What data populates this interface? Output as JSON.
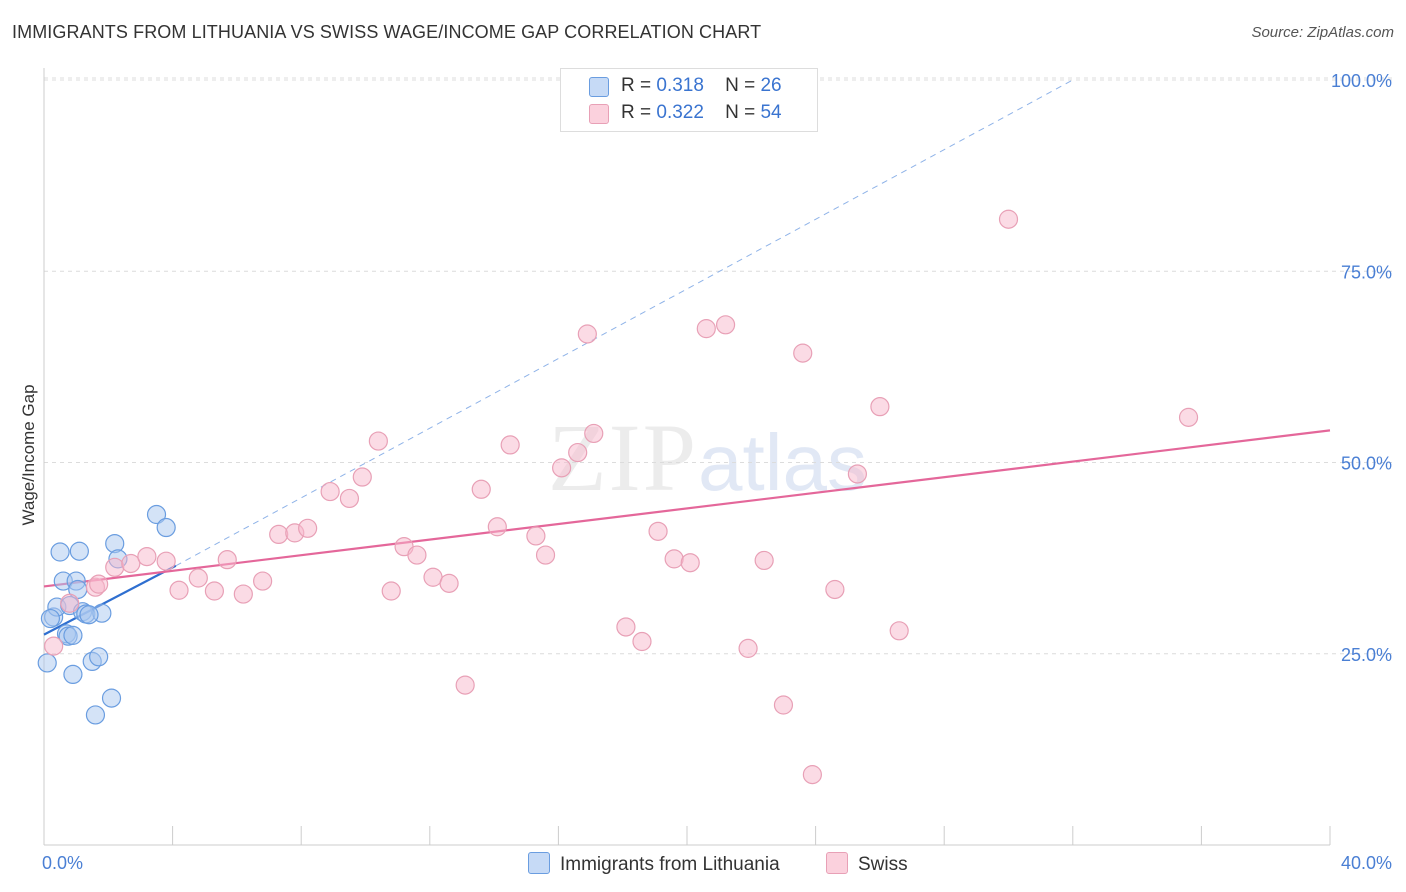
{
  "title": "IMMIGRANTS FROM LITHUANIA VS SWISS WAGE/INCOME GAP CORRELATION CHART",
  "source": "Source: ZipAtlas.com",
  "watermark": {
    "zip": "ZIP",
    "atlas": "atlas"
  },
  "legend": {
    "r_label": "R =",
    "n_label": "N =",
    "rows": [
      {
        "name": "Immigrants from Lithuania",
        "r": "0.318",
        "n": "26",
        "color": "#a9c8f0"
      },
      {
        "name": "Swiss",
        "r": "0.322",
        "n": "54",
        "color": "#f7b8cb"
      }
    ]
  },
  "chart_data": {
    "type": "scatter",
    "title": "IMMIGRANTS FROM LITHUANIA VS SWISS WAGE/INCOME GAP CORRELATION CHART",
    "xlabel": "",
    "ylabel": "Wage/Income Gap",
    "xlim": [
      0,
      40
    ],
    "ylim": [
      0,
      105
    ],
    "x_tick_labels": [
      "0.0%",
      "40.0%"
    ],
    "y_ticks": [
      25,
      50,
      75,
      100
    ],
    "y_tick_labels": [
      "25.0%",
      "50.0%",
      "75.0%",
      "100.0%"
    ],
    "grid": true,
    "legend_position": "top-center",
    "series": [
      {
        "name": "Immigrants from Lithuania",
        "color": "#6a9de0",
        "fill": "#a9c8f0",
        "trend_color": "#2f6fd0",
        "trend_solid": {
          "x": [
            0,
            4.1
          ],
          "y": [
            27.5,
            36.5
          ]
        },
        "trend_dashed": {
          "x": [
            4.1,
            32
          ],
          "y": [
            36.5,
            100
          ]
        },
        "points": [
          [
            0.1,
            23.8
          ],
          [
            0.3,
            29.8
          ],
          [
            0.4,
            31.1
          ],
          [
            0.5,
            38.3
          ],
          [
            0.6,
            34.5
          ],
          [
            0.7,
            27.6
          ],
          [
            0.75,
            27.3
          ],
          [
            0.8,
            31.3
          ],
          [
            0.9,
            22.3
          ],
          [
            1.0,
            34.5
          ],
          [
            1.05,
            33.4
          ],
          [
            1.1,
            38.4
          ],
          [
            1.2,
            30.5
          ],
          [
            1.3,
            30.2
          ],
          [
            1.5,
            24.0
          ],
          [
            1.6,
            17.0
          ],
          [
            1.7,
            24.6
          ],
          [
            1.8,
            30.3
          ],
          [
            2.1,
            19.2
          ],
          [
            2.2,
            39.4
          ],
          [
            2.3,
            37.4
          ],
          [
            3.5,
            43.2
          ],
          [
            3.8,
            41.5
          ],
          [
            0.2,
            29.6
          ],
          [
            0.9,
            27.4
          ],
          [
            1.4,
            30.1
          ]
        ]
      },
      {
        "name": "Swiss",
        "color": "#e8a0b6",
        "fill": "#f7b8cb",
        "trend_color": "#e4679a",
        "trend_solid": {
          "x": [
            0,
            40
          ],
          "y": [
            33.8,
            54.2
          ]
        },
        "points": [
          [
            0.3,
            26.0
          ],
          [
            0.8,
            31.6
          ],
          [
            1.6,
            33.7
          ],
          [
            1.7,
            34.1
          ],
          [
            2.2,
            36.3
          ],
          [
            2.7,
            36.8
          ],
          [
            3.2,
            37.7
          ],
          [
            3.8,
            37.1
          ],
          [
            4.2,
            33.3
          ],
          [
            4.8,
            34.9
          ],
          [
            5.3,
            33.2
          ],
          [
            5.7,
            37.3
          ],
          [
            6.2,
            32.8
          ],
          [
            6.8,
            34.5
          ],
          [
            7.3,
            40.6
          ],
          [
            7.8,
            40.8
          ],
          [
            8.2,
            41.4
          ],
          [
            8.9,
            46.2
          ],
          [
            9.5,
            45.3
          ],
          [
            9.9,
            48.1
          ],
          [
            10.4,
            52.8
          ],
          [
            10.8,
            33.2
          ],
          [
            11.2,
            39.0
          ],
          [
            11.6,
            37.9
          ],
          [
            12.1,
            35.0
          ],
          [
            12.6,
            34.2
          ],
          [
            13.1,
            20.9
          ],
          [
            13.6,
            46.5
          ],
          [
            14.1,
            41.6
          ],
          [
            14.5,
            52.3
          ],
          [
            15.3,
            40.4
          ],
          [
            15.6,
            37.9
          ],
          [
            16.1,
            49.3
          ],
          [
            16.6,
            51.3
          ],
          [
            17.1,
            53.8
          ],
          [
            16.9,
            66.8
          ],
          [
            18.1,
            28.5
          ],
          [
            18.6,
            26.6
          ],
          [
            19.1,
            41.0
          ],
          [
            19.6,
            37.4
          ],
          [
            20.1,
            36.9
          ],
          [
            20.6,
            67.5
          ],
          [
            21.2,
            68.0
          ],
          [
            21.9,
            25.7
          ],
          [
            22.4,
            37.2
          ],
          [
            23.0,
            18.3
          ],
          [
            23.6,
            64.3
          ],
          [
            23.9,
            9.2
          ],
          [
            24.6,
            33.4
          ],
          [
            25.3,
            48.5
          ],
          [
            26.0,
            57.3
          ],
          [
            26.6,
            28.0
          ],
          [
            30.0,
            81.8
          ],
          [
            35.6,
            55.9
          ]
        ]
      }
    ]
  }
}
